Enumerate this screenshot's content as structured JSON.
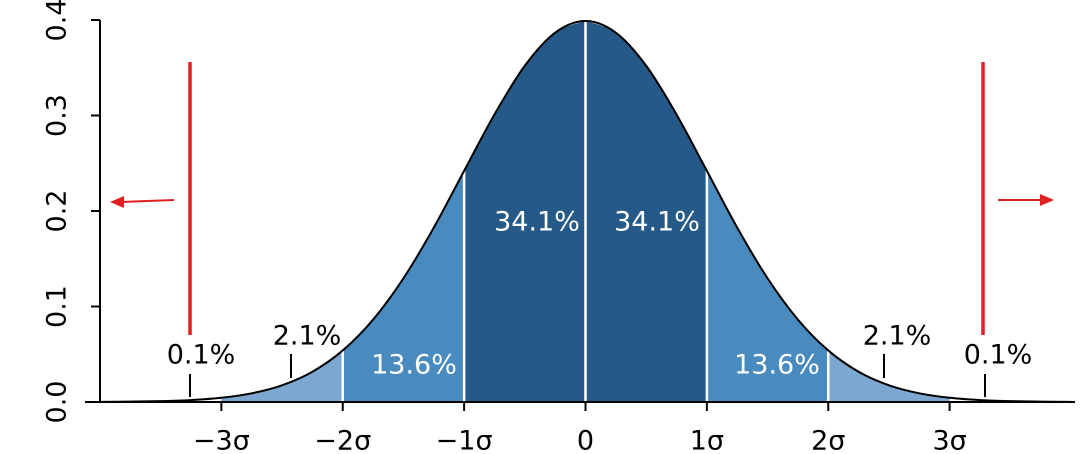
{
  "chart_data": {
    "type": "area",
    "x": [
      -4,
      -3.75,
      -3.5,
      -3.25,
      -3,
      -2.75,
      -2.5,
      -2.25,
      -2,
      -1.75,
      -1.5,
      -1.25,
      -1,
      -0.75,
      -0.5,
      -0.25,
      0,
      0.25,
      0.5,
      0.75,
      1,
      1.25,
      1.5,
      1.75,
      2,
      2.25,
      2.5,
      2.75,
      3,
      3.25,
      3.5,
      3.75,
      4
    ],
    "values": [
      0.0001,
      0.0004,
      0.0009,
      0.002,
      0.0044,
      0.0091,
      0.0175,
      0.0317,
      0.054,
      0.0863,
      0.1295,
      0.1826,
      0.242,
      0.3011,
      0.3521,
      0.3867,
      0.3989,
      0.3867,
      0.3521,
      0.3011,
      0.242,
      0.1826,
      0.1295,
      0.0863,
      0.054,
      0.0317,
      0.0175,
      0.0091,
      0.0044,
      0.002,
      0.0009,
      0.0004,
      0.0001
    ],
    "color": "#000000",
    "regions": {
      "edges": [
        -3,
        -2,
        -1,
        0,
        1,
        2,
        3
      ],
      "colors": [
        "#7ba7d0",
        "#4a8bbf",
        "#255a88",
        "#255a88",
        "#4a8bbf",
        "#7ba7d0"
      ],
      "values": [
        2.1,
        13.6,
        34.1,
        34.1,
        13.6,
        2.1
      ],
      "value_labels": [
        "2.1%",
        "13.6%",
        "34.1%",
        "34.1%",
        "13.6%",
        "2.1%"
      ]
    },
    "tails": {
      "values": [
        0.1,
        0.1
      ],
      "value_labels": [
        "0.1%",
        "0.1%"
      ]
    },
    "xlim": [
      -4,
      4
    ],
    "ylim": [
      0,
      0.4
    ],
    "xticks": [
      {
        "value": -3,
        "label": "−3σ"
      },
      {
        "value": -2,
        "label": "−2σ"
      },
      {
        "value": -1,
        "label": "−1σ"
      },
      0,
      {
        "value": 1,
        "label": "1σ"
      },
      {
        "value": 2,
        "label": "2σ"
      },
      {
        "value": 3,
        "label": "3σ"
      }
    ],
    "yticks": [
      {
        "value": 0,
        "label": "0.0"
      },
      0.1,
      0.2,
      0.3,
      0.4
    ],
    "grid": false
  }
}
